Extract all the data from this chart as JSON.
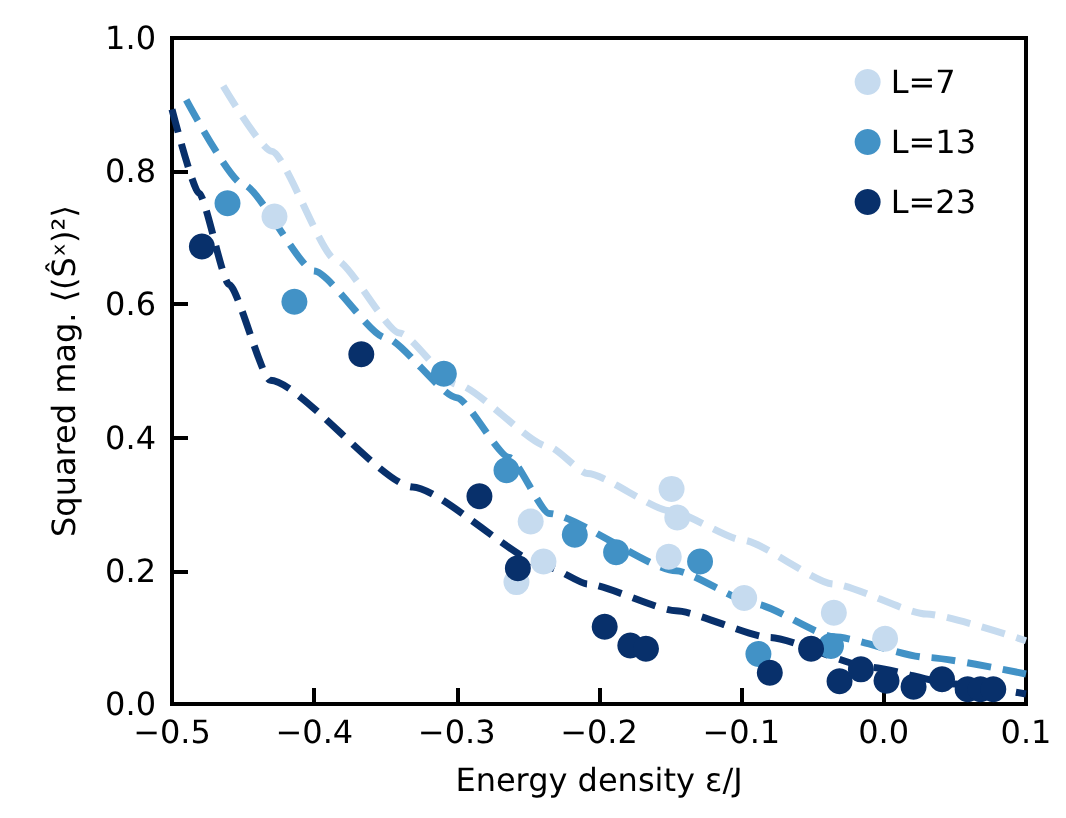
{
  "chart_data": {
    "type": "scatter",
    "xlabel": "Energy density ε/J",
    "ylabel": "Squared mag. ⟨(Ŝˣ)²⟩",
    "xlim": [
      -0.5,
      0.1
    ],
    "ylim": [
      0,
      1
    ],
    "xticks": [
      {
        "value": -0.5,
        "label": "−0.5"
      },
      {
        "value": -0.4,
        "label": "−0.4"
      },
      {
        "value": -0.3,
        "label": "−0.3"
      },
      {
        "value": -0.2,
        "label": "−0.2"
      },
      {
        "value": -0.1,
        "label": "−0.1"
      },
      {
        "value": 0,
        "label": "0.0"
      },
      {
        "value": 0.1,
        "label": "0.1"
      }
    ],
    "yticks": [
      {
        "value": 0,
        "label": "0.0"
      },
      {
        "value": 0.2,
        "label": "0.2"
      },
      {
        "value": 0.4,
        "label": "0.4"
      },
      {
        "value": 0.6,
        "label": "0.6"
      },
      {
        "value": 0.8,
        "label": "0.8"
      },
      {
        "value": 1,
        "label": "1.0"
      }
    ],
    "grid": false,
    "legend": "top right",
    "marker": "circle",
    "series": [
      {
        "type": "line",
        "marker": "none",
        "line_style": "dashed",
        "color": "#c6dbef",
        "x": [
          -0.464,
          -0.43,
          -0.385,
          -0.34,
          -0.3,
          -0.235,
          -0.208,
          -0.15,
          -0.099,
          -0.035,
          0.03,
          0.1
        ],
        "values": [
          0.928,
          0.83,
          0.667,
          0.557,
          0.48,
          0.386,
          0.346,
          0.29,
          0.246,
          0.18,
          0.135,
          0.095
        ]
      },
      {
        "type": "line",
        "marker": "none",
        "line_style": "dashed",
        "color": "#4292c6",
        "x": [
          -0.49,
          -0.45,
          -0.4,
          -0.35,
          -0.3,
          -0.263,
          -0.235,
          -0.146,
          -0.09,
          -0.035,
          0.03,
          0.1
        ],
        "values": [
          0.907,
          0.78,
          0.65,
          0.55,
          0.46,
          0.37,
          0.286,
          0.2,
          0.15,
          0.101,
          0.07,
          0.045
        ]
      },
      {
        "type": "line",
        "marker": "none",
        "line_style": "dashed",
        "color": "#08306b",
        "x": [
          -0.5,
          -0.481,
          -0.46,
          -0.431,
          -0.331,
          -0.235,
          -0.208,
          -0.146,
          -0.08,
          -0.009,
          0.05,
          0.1
        ],
        "values": [
          0.893,
          0.767,
          0.63,
          0.486,
          0.326,
          0.205,
          0.18,
          0.14,
          0.1,
          0.055,
          0.03,
          0.015
        ]
      },
      {
        "name": "L=7",
        "color": "#c6dbef",
        "x": [
          -0.428,
          -0.258,
          -0.248,
          -0.239,
          -0.151,
          -0.149,
          -0.145,
          -0.098,
          -0.035,
          0.001
        ],
        "values": [
          0.732,
          0.183,
          0.274,
          0.214,
          0.221,
          0.323,
          0.28,
          0.159,
          0.137,
          0.098
        ]
      },
      {
        "name": "L=13",
        "color": "#4292c6",
        "x": [
          -0.461,
          -0.414,
          -0.309,
          -0.265,
          -0.217,
          -0.188,
          -0.129,
          -0.088,
          -0.037
        ],
        "values": [
          0.752,
          0.604,
          0.496,
          0.351,
          0.254,
          0.228,
          0.214,
          0.075,
          0.087
        ]
      },
      {
        "name": "L=23",
        "color": "#08306b",
        "x": [
          -0.479,
          -0.367,
          -0.284,
          -0.257,
          -0.196,
          -0.178,
          -0.167,
          -0.08,
          -0.051,
          -0.031,
          -0.016,
          0.002,
          0.021,
          0.041,
          0.059,
          0.068,
          0.077
        ],
        "values": [
          0.687,
          0.525,
          0.312,
          0.204,
          0.116,
          0.088,
          0.083,
          0.047,
          0.083,
          0.034,
          0.052,
          0.035,
          0.026,
          0.037,
          0.022,
          0.022,
          0.022
        ]
      }
    ]
  }
}
